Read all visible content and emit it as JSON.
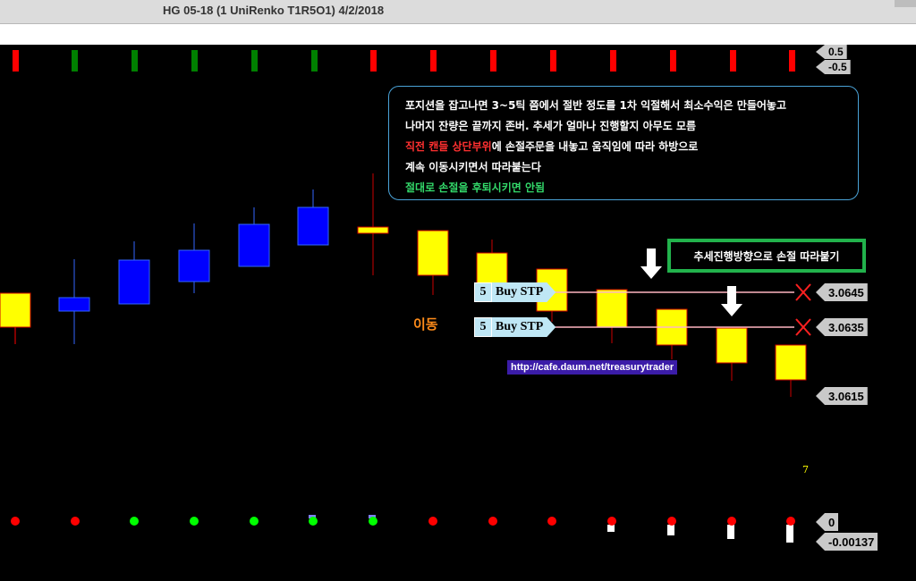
{
  "window": {
    "title": "HG 05-18 (1 UniRenko T1R5O1)  4/2/2018"
  },
  "chart": {
    "colors": {
      "up": "#0000ff",
      "down": "#ffff00",
      "signal_red": "#ff0000",
      "signal_green": "#008000",
      "stop_line": "#ffb6c1"
    },
    "top_signals": [
      "red",
      "green",
      "green",
      "green",
      "green",
      "green",
      "red",
      "red",
      "red",
      "red",
      "red",
      "red",
      "red",
      "red"
    ],
    "bottom_dots": [
      "red",
      "red",
      "lime",
      "lime",
      "lime",
      "lime",
      "lime",
      "red",
      "red",
      "red",
      "red",
      "red",
      "red",
      "red"
    ]
  },
  "annotation": {
    "line1": "포지션을 잡고나면 3~5틱 쯤에서 절반 정도를 1차 익절해서 최소수익은 만들어놓고",
    "line2": "나머지 잔량은 끝까지 존버. 추세가 얼마나 진행할지 아무도 모름",
    "line3_red": "직전 캔들 상단부위",
    "line3_rest": "에 손절주문을 내놓고 움직임에 따라 하방으로",
    "line4": "계속 이동시키면서 따라붙는다",
    "line5": "절대로 손절을 후퇴시키면 안됨"
  },
  "trail_note": "추세진행방향으로 손절 따라붙기",
  "move_label": "이동",
  "url": "http://cafe.daum.net/treasurytrader",
  "orders": [
    {
      "qty": "5",
      "label": "Buy STP",
      "price": "3.0645"
    },
    {
      "qty": "5",
      "label": "Buy STP",
      "price": "3.0635"
    }
  ],
  "price_labels": {
    "current": "3.0615",
    "top_a": "0.5",
    "top_b": "-0.5",
    "indicator_zero": "0",
    "indicator_value": "-0.00137"
  },
  "marker_seven": "7"
}
